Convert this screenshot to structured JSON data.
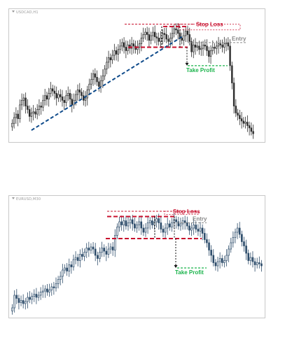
{
  "colors": {
    "candle": "#2b2b2b",
    "candle_blue": "#2e4d6b",
    "stop_loss": "#c8102e",
    "take_profit": "#19b34a",
    "entry": "#8a8a8a",
    "trendline": "#0e4a8a",
    "measure": "#111111"
  },
  "chart_data": [
    {
      "type": "candlestick",
      "title": "",
      "symbol": "USDCAD,H1",
      "annotations": {
        "stop_loss": "Stop Loss",
        "entry": "Entry",
        "take_profit": "Take Profit"
      },
      "xlabel": "",
      "ylabel": "",
      "grid": false,
      "closes": [
        1.0,
        1.5,
        1.8,
        1.4,
        2.6,
        3.0,
        3.2,
        2.5,
        2.2,
        1.6,
        1.9,
        2.0,
        1.8,
        2.2,
        2.5,
        2.4,
        3.0,
        3.4,
        3.1,
        3.6,
        4.0,
        3.8,
        3.6,
        3.2,
        3.5,
        3.3,
        3.0,
        2.8,
        3.4,
        3.6,
        3.1,
        2.6,
        3.0,
        3.5,
        3.9,
        3.7,
        3.4,
        3.0,
        3.2,
        3.9,
        4.4,
        4.8,
        5.3,
        5.0,
        4.6,
        4.2,
        4.7,
        5.1,
        5.7,
        6.3,
        6.7,
        6.5,
        6.9,
        7.3,
        7.0,
        7.4,
        7.7,
        8.0,
        7.6,
        7.3,
        7.8,
        7.5,
        7.9,
        7.7,
        7.4,
        7.6,
        7.9,
        8.4,
        8.7,
        8.9,
        8.7,
        8.2,
        8.6,
        8.9,
        8.5,
        8.4,
        8.1,
        8.4,
        8.8,
        8.7,
        8.3,
        8.1,
        8.4,
        8.8,
        9.2,
        9.1,
        8.8,
        8.4,
        8.2,
        8.6,
        9.0,
        8.7,
        8.1,
        7.2,
        7.8,
        7.6,
        7.7,
        7.4,
        7.5,
        7.8,
        7.7,
        7.3,
        6.8,
        7.3,
        7.6,
        7.5,
        7.7,
        7.9,
        7.8,
        7.6,
        7.9,
        8.0,
        7.7,
        6.0,
        4.5,
        2.5,
        1.9,
        1.7,
        1.4,
        1.2,
        1.0,
        1.1,
        0.8,
        0.6,
        0.3,
        0.1
      ],
      "levels": {
        "stop_loss": 9.6,
        "stop_loss_box_bottom": 9.1,
        "entry": 8.0,
        "take_profit": 6.0,
        "range_high": 9.4,
        "range_low": 7.6
      },
      "trendline": {
        "from_index": 10,
        "from_value": 0.4,
        "to_index": 88,
        "to_value": 8.5
      },
      "ylim": [
        -0.5,
        10.3
      ]
    },
    {
      "type": "candlestick",
      "title": "",
      "symbol": "EURUSD,M30",
      "annotations": {
        "stop_loss": "Stop Loss",
        "entry": "Entry",
        "take_profit": "Take Profit"
      },
      "xlabel": "",
      "ylabel": "",
      "grid": false,
      "closes": [
        0.3,
        1.5,
        1.2,
        0.8,
        1.0,
        0.7,
        0.9,
        1.3,
        1.1,
        1.4,
        1.6,
        1.3,
        1.5,
        1.8,
        1.9,
        2.1,
        1.8,
        2.0,
        2.3,
        2.2,
        2.6,
        3.0,
        3.3,
        3.9,
        4.1,
        3.8,
        4.4,
        4.2,
        4.9,
        5.1,
        4.8,
        5.4,
        5.2,
        5.6,
        6.0,
        5.8,
        6.1,
        5.9,
        5.3,
        5.0,
        5.6,
        6.0,
        5.7,
        5.4,
        5.9,
        6.1,
        5.8,
        7.2,
        8.0,
        8.5,
        8.2,
        8.6,
        8.1,
        8.4,
        8.7,
        8.3,
        7.9,
        8.2,
        8.5,
        7.9,
        7.5,
        7.9,
        8.4,
        8.6,
        8.2,
        8.5,
        8.8,
        8.4,
        7.8,
        7.5,
        7.9,
        8.3,
        8.0,
        8.4,
        8.7,
        8.5,
        8.1,
        8.3,
        8.6,
        8.4,
        8.1,
        7.7,
        7.9,
        8.2,
        7.8,
        7.6,
        7.9,
        7.4,
        6.8,
        6.5,
        5.8,
        5.3,
        4.6,
        4.3,
        4.7,
        5.0,
        4.6,
        4.8,
        5.3,
        5.9,
        6.5,
        7.0,
        7.5,
        7.9,
        7.3,
        6.6,
        6.2,
        5.5,
        4.8,
        5.1,
        4.7,
        4.4,
        4.6,
        4.5,
        4.3
      ],
      "levels": {
        "stop_loss": 9.5,
        "stop_loss_box_bottom": 9.2,
        "entry": 8.4,
        "take_profit": 4.1,
        "range_high": 9.0,
        "range_low": 6.9
      },
      "trendline": null,
      "ylim": [
        -0.5,
        10.3
      ]
    }
  ]
}
